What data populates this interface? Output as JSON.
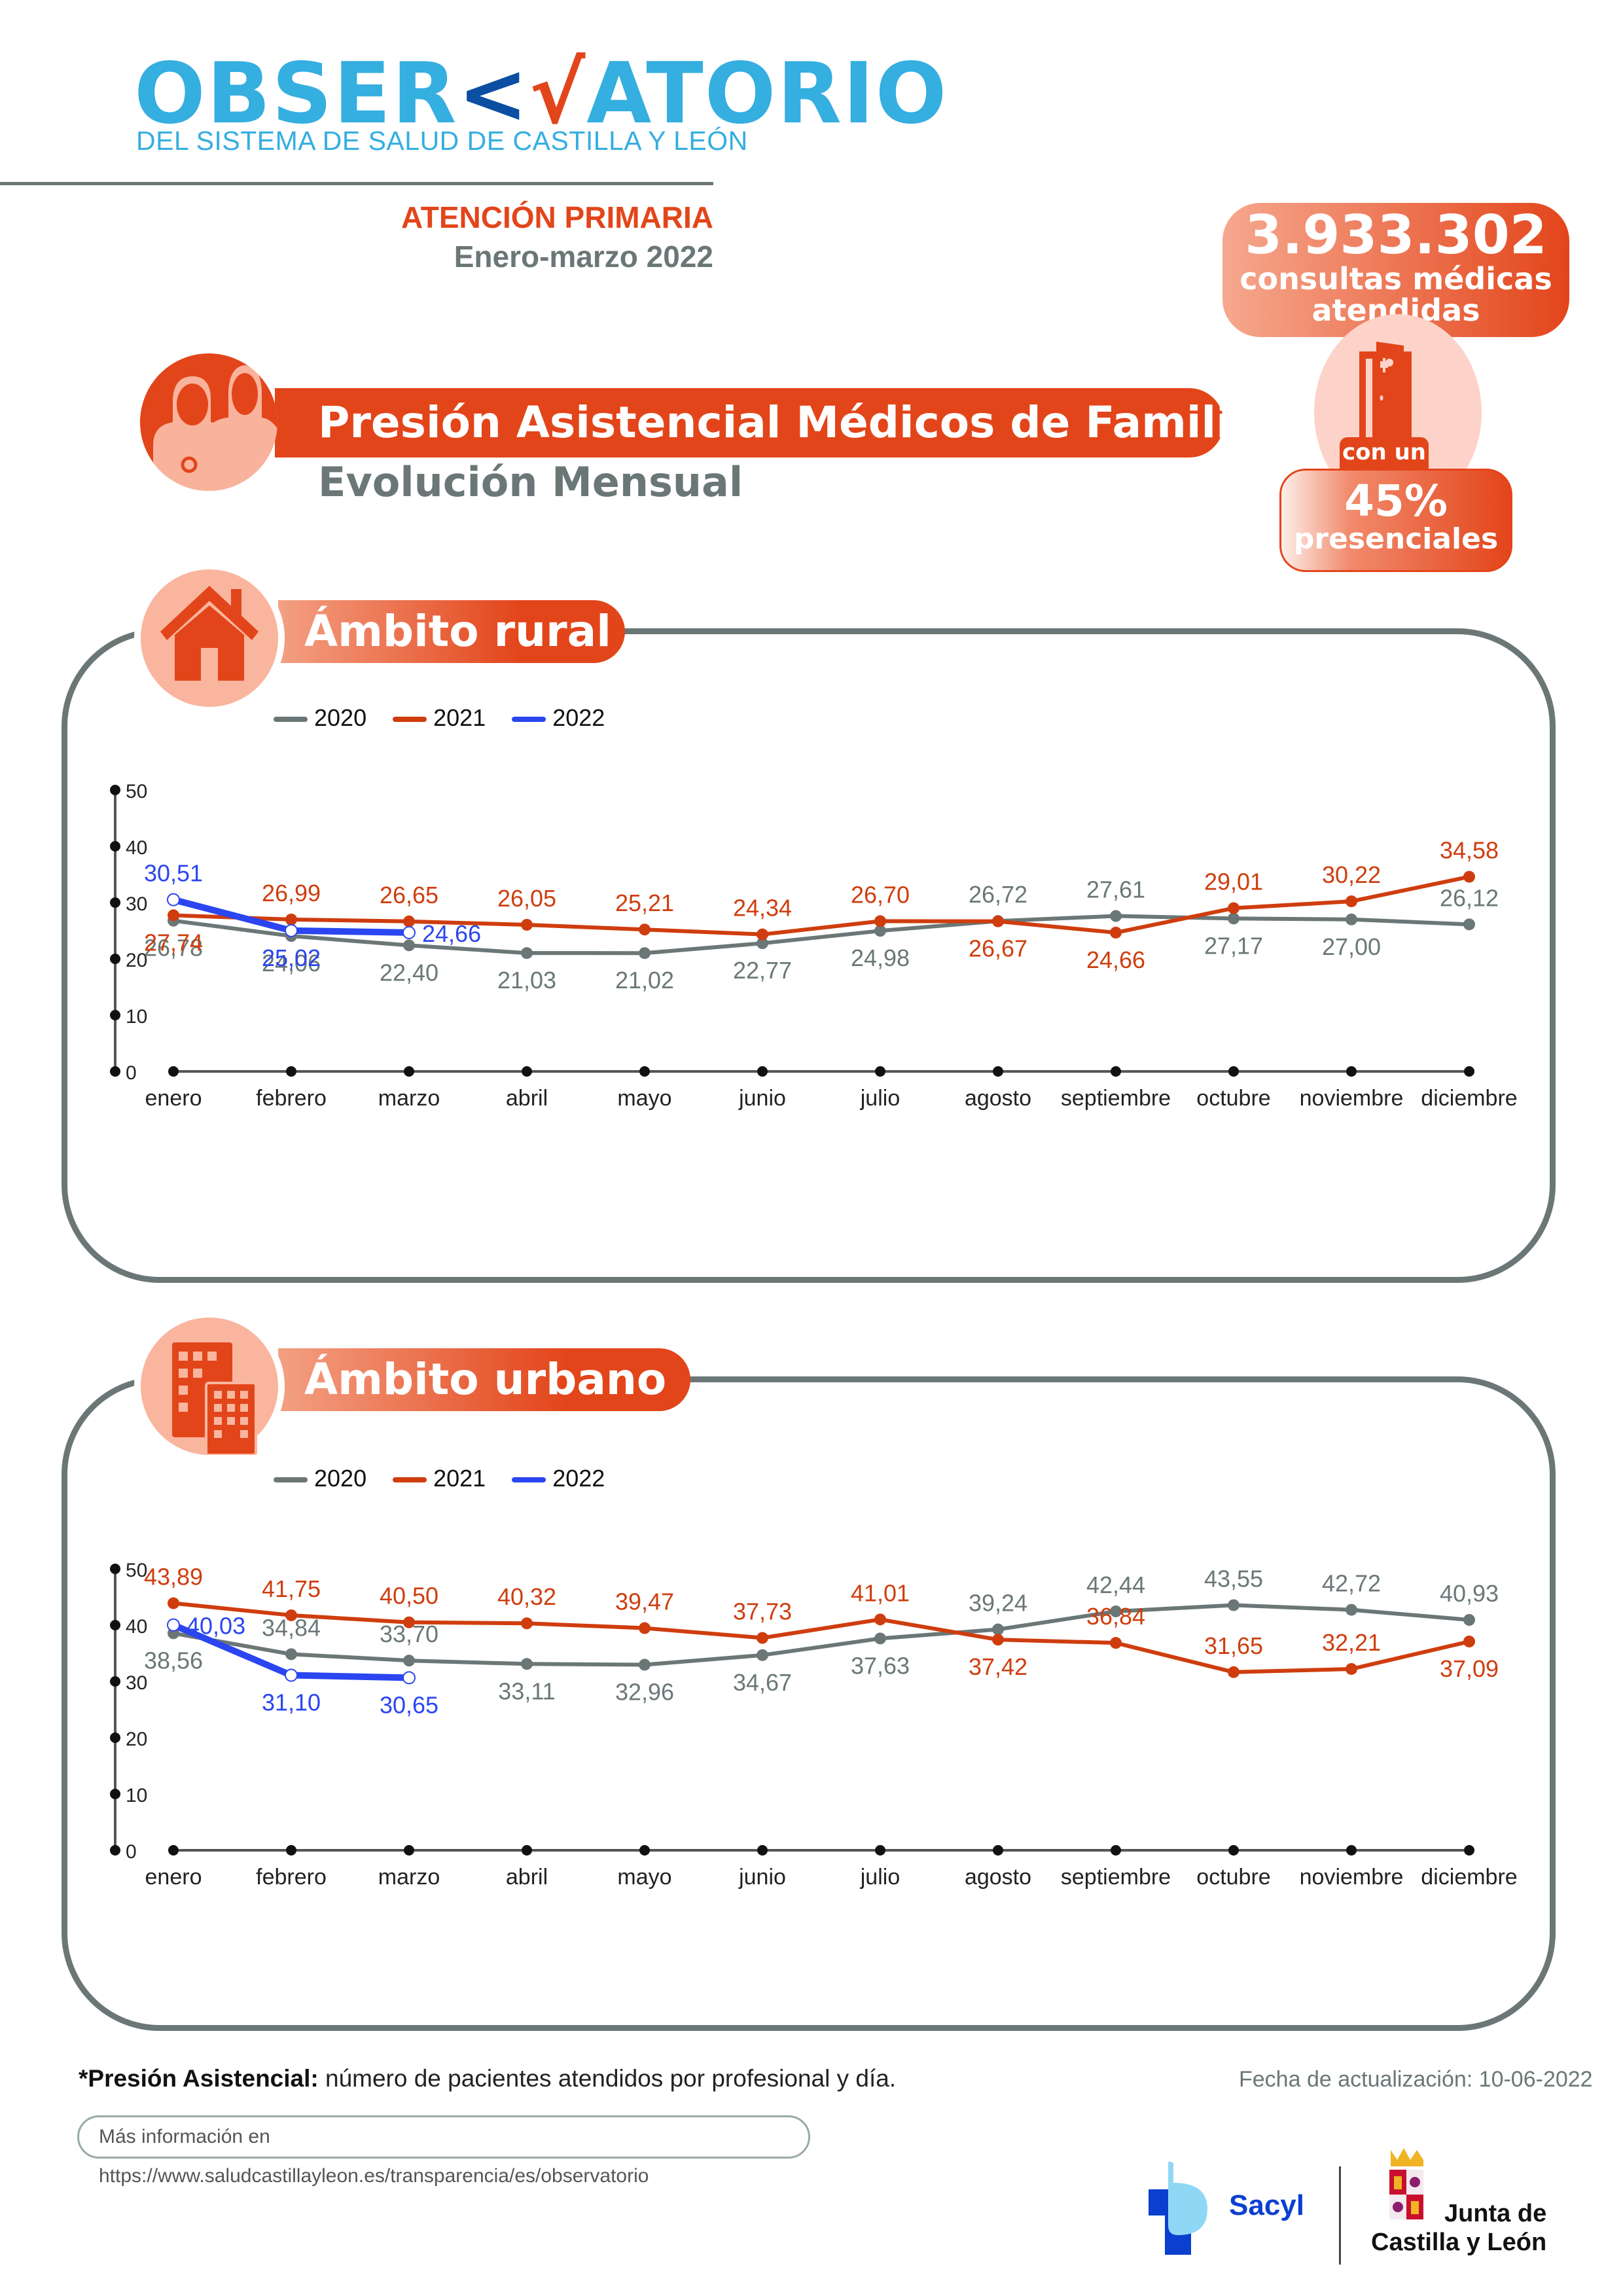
{
  "header": {
    "logo_part1": "OBSER",
    "logo_part2": "ATORIO",
    "logo_subtitle": "DEL SISTEMA DE SALUD DE CASTILLA Y LEÓN",
    "section": "ATENCIÓN PRIMARIA",
    "period": "Enero-marzo 2022"
  },
  "kpi": {
    "consultas_value": "3.933.302",
    "consultas_label_1": "consultas médicas",
    "consultas_label_2": "atendidas",
    "connector": "con un",
    "presenciales_value": "45%",
    "presenciales_label": "presenciales"
  },
  "title": {
    "main": "Presión Asistencial Médicos de Familia",
    "sub": "Evolución Mensual"
  },
  "colors": {
    "accent": "#e3451a",
    "series_2020": "#6b7777",
    "series_2021": "#cf3d0e",
    "series_2022": "#2b45f0",
    "frame": "#6b7777"
  },
  "chart_data": [
    {
      "id": "rural",
      "type": "line",
      "title": "Ámbito rural",
      "categories": [
        "enero",
        "febrero",
        "marzo",
        "abril",
        "mayo",
        "junio",
        "julio",
        "agosto",
        "septiembre",
        "octubre",
        "noviembre",
        "diciembre"
      ],
      "yticks": [
        "0",
        "10",
        "20",
        "30",
        "40",
        "50"
      ],
      "ylim": [
        0,
        50
      ],
      "legend": [
        "2020",
        "2021",
        "2022"
      ],
      "legend_position": "top-left",
      "series": [
        {
          "name": "2020",
          "values": [
            26.78,
            24.06,
            22.4,
            21.03,
            21.02,
            22.77,
            24.98,
            26.72,
            27.61,
            27.17,
            27.0,
            26.12
          ],
          "labels": [
            "26,78",
            "24,06",
            "22,40",
            "21,03",
            "21,02",
            "22,77",
            "24,98",
            "26,72",
            "27,61",
            "27,17",
            "27,00",
            "26,12"
          ],
          "label_pos": [
            "below",
            "below",
            "below",
            "below",
            "below",
            "below",
            "below",
            "above",
            "above",
            "below",
            "below",
            "above"
          ]
        },
        {
          "name": "2021",
          "values": [
            27.74,
            26.99,
            26.65,
            26.05,
            25.21,
            24.34,
            26.7,
            26.67,
            24.66,
            29.01,
            30.22,
            34.58
          ],
          "labels": [
            "27,74",
            "26,99",
            "26,65",
            "26,05",
            "25,21",
            "24,34",
            "26,70",
            "26,67",
            "24,66",
            "29,01",
            "30,22",
            "34,58"
          ],
          "label_pos": [
            "below",
            "above",
            "above",
            "above",
            "above",
            "above",
            "above",
            "below",
            "below",
            "above",
            "above",
            "above"
          ]
        },
        {
          "name": "2022",
          "values": [
            30.51,
            25.02,
            24.66
          ],
          "labels": [
            "30,51",
            "25,02",
            "24,66"
          ],
          "label_pos": [
            "above",
            "below",
            "right"
          ]
        }
      ]
    },
    {
      "id": "urban",
      "type": "line",
      "title": "Ámbito urbano",
      "categories": [
        "enero",
        "febrero",
        "marzo",
        "abril",
        "mayo",
        "junio",
        "julio",
        "agosto",
        "septiembre",
        "octubre",
        "noviembre",
        "diciembre"
      ],
      "yticks": [
        "0",
        "10",
        "20",
        "30",
        "40",
        "50"
      ],
      "ylim": [
        0,
        50
      ],
      "legend": [
        "2020",
        "2021",
        "2022"
      ],
      "legend_position": "top-left",
      "series": [
        {
          "name": "2020",
          "values": [
            38.56,
            34.84,
            33.7,
            33.11,
            32.96,
            34.67,
            37.63,
            39.24,
            42.44,
            43.55,
            42.72,
            40.93
          ],
          "labels": [
            "38,56",
            "34,84",
            "33,70",
            "33,11",
            "32,96",
            "34,67",
            "37,63",
            "39,24",
            "42,44",
            "43,55",
            "42,72",
            "40,93"
          ],
          "label_pos": [
            "below",
            "above",
            "above",
            "below",
            "below",
            "below",
            "below",
            "above",
            "above",
            "above",
            "above",
            "above"
          ]
        },
        {
          "name": "2021",
          "values": [
            43.89,
            41.75,
            40.5,
            40.32,
            39.47,
            37.73,
            41.01,
            37.42,
            36.84,
            31.65,
            32.21,
            37.09
          ],
          "labels": [
            "43,89",
            "41,75",
            "40,50",
            "40,32",
            "39,47",
            "37,73",
            "41,01",
            "37,42",
            "36,84",
            "31,65",
            "32,21",
            "37,09"
          ],
          "label_pos": [
            "above",
            "above",
            "above",
            "above",
            "above",
            "above",
            "above",
            "below",
            "above",
            "above",
            "above",
            "below"
          ]
        },
        {
          "name": "2022",
          "values": [
            40.03,
            31.1,
            30.65
          ],
          "labels": [
            "40,03",
            "31,10",
            "30,65"
          ],
          "label_pos": [
            "right",
            "below",
            "below"
          ]
        }
      ]
    }
  ],
  "footer": {
    "note_bold": "*Presión Asistencial:",
    "note_text": " número de pacientes atendidos por profesional y día.",
    "update_date": "Fecha de actualización: 10-06-2022",
    "more_info": "Más información en https://www.saludcastillayleon.es/transparencia/es/observatorio",
    "sacyl": "Sacyl",
    "junta_1": "Junta de",
    "junta_2": "Castilla y León"
  }
}
